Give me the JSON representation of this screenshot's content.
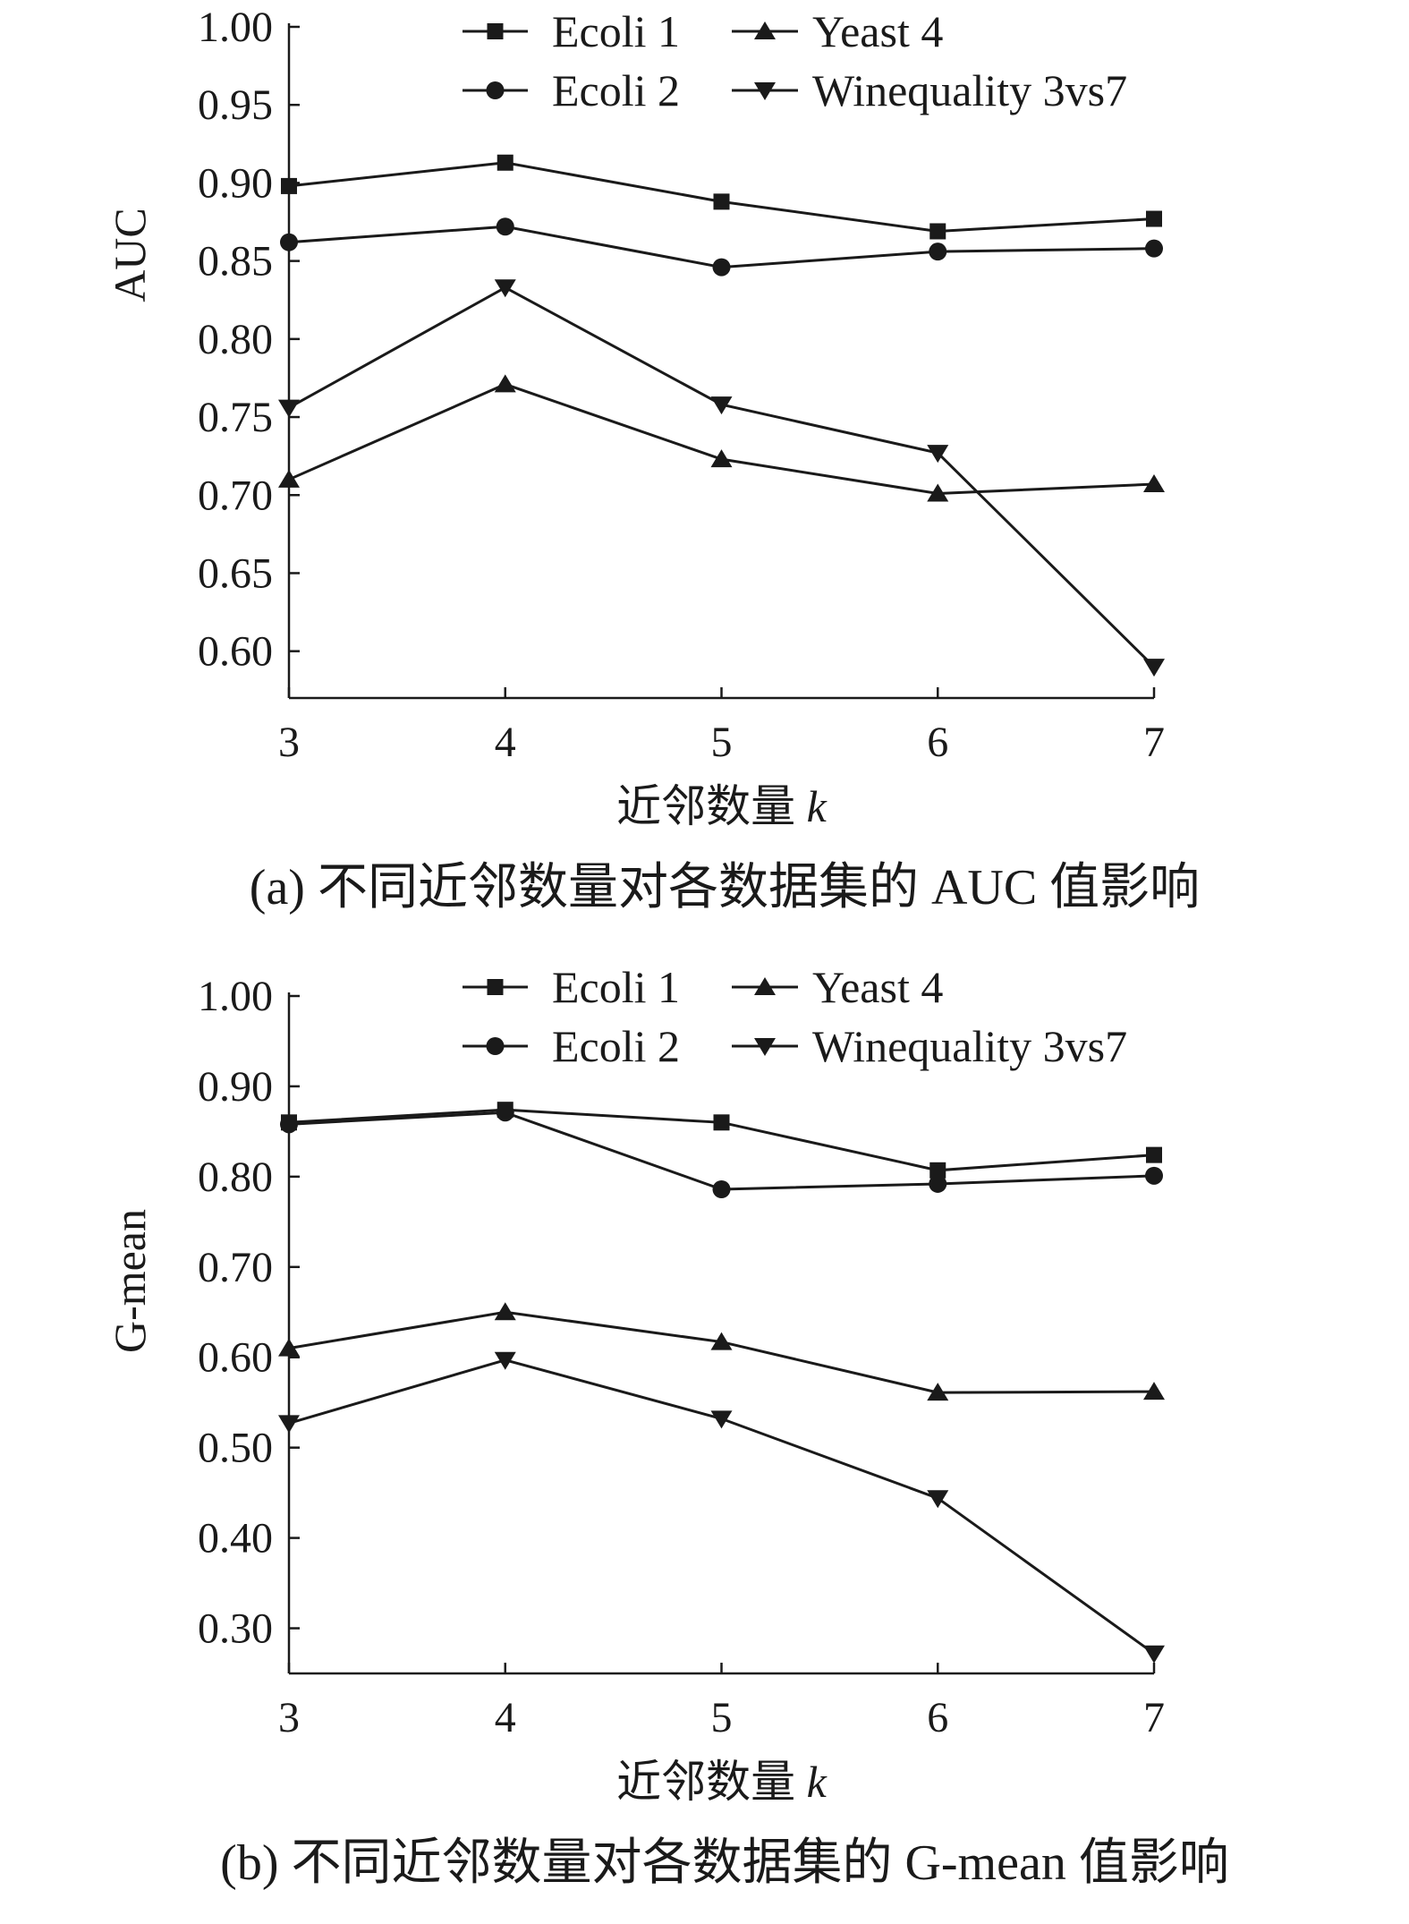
{
  "chart_data": [
    {
      "type": "line",
      "caption": "(a) 不同近邻数量对各数据集的 AUC 值影响",
      "xlabel": "近邻数量",
      "xlabel_var": "k",
      "ylabel": "AUC",
      "x": [
        3,
        4,
        5,
        6,
        7
      ],
      "x_ticks": [
        "3",
        "4",
        "5",
        "6",
        "7"
      ],
      "ylim": [
        0.57,
        1.0
      ],
      "y_ticks": [
        "0.60",
        "0.65",
        "0.70",
        "0.75",
        "0.80",
        "0.85",
        "0.90",
        "0.95",
        "1.00"
      ],
      "grid": false,
      "legend_position": "top",
      "series": [
        {
          "name": "Ecoli 1",
          "marker": "square",
          "values": [
            0.898,
            0.913,
            0.888,
            0.869,
            0.877
          ]
        },
        {
          "name": "Ecoli 2",
          "marker": "circle",
          "values": [
            0.862,
            0.872,
            0.846,
            0.856,
            0.858
          ]
        },
        {
          "name": "Yeast 4",
          "marker": "triangle-up",
          "values": [
            0.71,
            0.771,
            0.723,
            0.701,
            0.707
          ]
        },
        {
          "name": "Winequality 3vs7",
          "marker": "triangle-down",
          "values": [
            0.756,
            0.833,
            0.758,
            0.727,
            0.59
          ]
        }
      ]
    },
    {
      "type": "line",
      "caption": "(b) 不同近邻数量对各数据集的 G-mean 值影响",
      "xlabel": "近邻数量",
      "xlabel_var": "k",
      "ylabel": "G-mean",
      "x": [
        3,
        4,
        5,
        6,
        7
      ],
      "x_ticks": [
        "3",
        "4",
        "5",
        "6",
        "7"
      ],
      "ylim": [
        0.25,
        1.0
      ],
      "y_ticks": [
        "0.30",
        "0.40",
        "0.50",
        "0.60",
        "0.70",
        "0.80",
        "0.90",
        "1.00"
      ],
      "grid": false,
      "legend_position": "top",
      "series": [
        {
          "name": "Ecoli 1",
          "marker": "square",
          "values": [
            0.86,
            0.874,
            0.86,
            0.807,
            0.824
          ]
        },
        {
          "name": "Ecoli 2",
          "marker": "circle",
          "values": [
            0.858,
            0.871,
            0.786,
            0.792,
            0.801
          ]
        },
        {
          "name": "Yeast 4",
          "marker": "triangle-up",
          "values": [
            0.61,
            0.65,
            0.617,
            0.561,
            0.562
          ]
        },
        {
          "name": "Winequality 3vs7",
          "marker": "triangle-down",
          "values": [
            0.527,
            0.597,
            0.532,
            0.444,
            0.272
          ]
        }
      ]
    }
  ]
}
